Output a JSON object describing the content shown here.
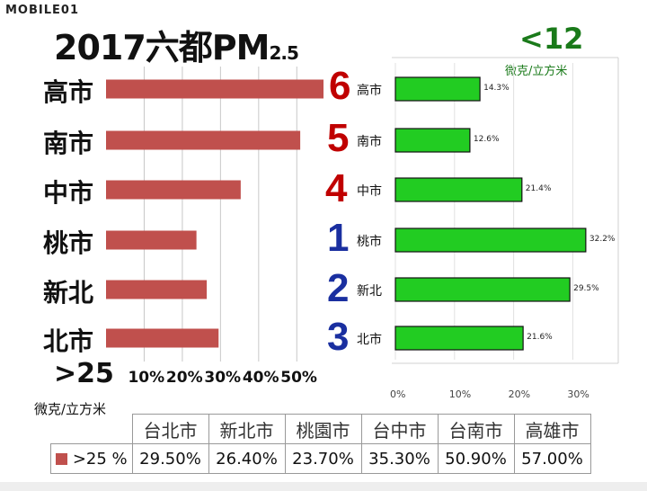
{
  "logo": "MOBILE01",
  "title": {
    "main": "2017六都PM",
    "sub": "2.5"
  },
  "left_panel": {
    "threshold": ">25",
    "unit": "微克/立方米"
  },
  "right_panel": {
    "threshold": "<12",
    "unit": "微克/立方米"
  },
  "colors": {
    "left_bar": "#c0504d",
    "right_bar": "#22cc22",
    "rank_red": "#c00000",
    "rank_blue": "#1a2fa0"
  },
  "chart_data": [
    {
      "type": "bar",
      "orientation": "horizontal",
      "categories": [
        "高市",
        "南市",
        "中市",
        "桃市",
        "新北",
        "北市"
      ],
      "series": [
        {
          "name": ">25 %",
          "values": [
            57.0,
            50.9,
            35.3,
            23.7,
            26.4,
            29.5
          ]
        }
      ],
      "x_ticks": [
        "10%",
        "20%",
        "30%",
        "40%",
        "50%"
      ],
      "xlim": [
        0,
        57
      ],
      "grid": true
    },
    {
      "type": "bar",
      "orientation": "horizontal",
      "categories": [
        "高市",
        "南市",
        "中市",
        "桃市",
        "新北",
        "北市"
      ],
      "series": [
        {
          "values": [
            14.3,
            12.6,
            21.4,
            32.2,
            29.5,
            21.6
          ]
        }
      ],
      "data_labels": [
        "14.3%",
        "12.6%",
        "21.4%",
        "32.2%",
        "29.5%",
        "21.6%"
      ],
      "ranks": [
        "6",
        "5",
        "4",
        "1",
        "2",
        "3"
      ],
      "x_ticks": [
        "0%",
        "10%",
        "20%",
        "30%"
      ],
      "xlim": [
        0,
        38
      ],
      "grid": true
    }
  ],
  "table": {
    "headers": [
      "台北市",
      "新北市",
      "桃園市",
      "台中市",
      "台南市",
      "高雄市"
    ],
    "row_label": ">25 %",
    "values": [
      "29.50%",
      "26.40%",
      "23.70%",
      "35.30%",
      "50.90%",
      "57.00%"
    ]
  }
}
